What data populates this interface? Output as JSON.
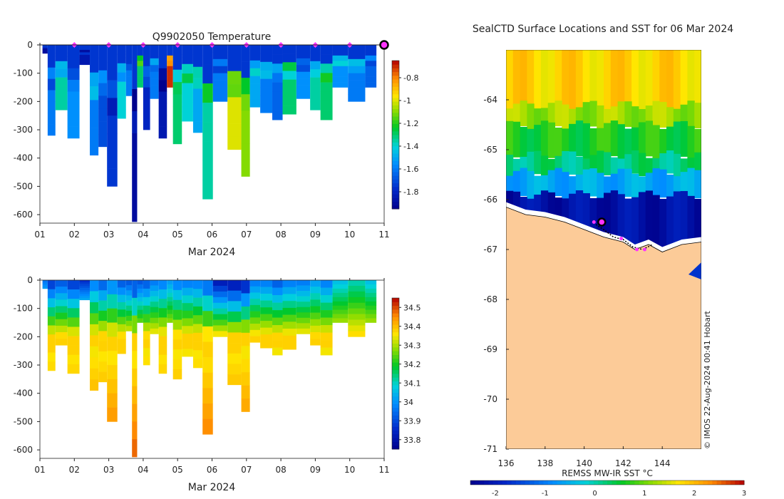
{
  "chart_data": [
    {
      "type": "heatmap",
      "panel": "temperature-section",
      "title": "Q9902050  Temperature",
      "xlabel": "Mar 2024",
      "ylabel": "",
      "x_ticks": [
        "01",
        "02",
        "03",
        "04",
        "05",
        "06",
        "07",
        "08",
        "09",
        "10",
        "11"
      ],
      "xlim": [
        1,
        11
      ],
      "ylim": [
        -630,
        0
      ],
      "y_ticks": [
        0,
        -100,
        -200,
        -300,
        -400,
        -500,
        -600
      ],
      "colorbar": {
        "ticks": [
          -0.8,
          -1,
          -1.2,
          -1.4,
          -1.6,
          -1.8
        ],
        "range": [
          -1.95,
          -0.65
        ]
      },
      "surface_markers_day": [
        2,
        3,
        4,
        5,
        6,
        7,
        8,
        9,
        10
      ],
      "current_position_day": 11,
      "profiles": [
        {
          "day": 1.15,
          "depth": 30,
          "temp": -1.9
        },
        {
          "day": 1.3,
          "depth": 320,
          "temp": -1.6
        },
        {
          "day": 1.6,
          "depth": 230,
          "temp": -1.35
        },
        {
          "day": 2.0,
          "depth": 330,
          "temp": -1.55
        },
        {
          "day": 2.3,
          "depth": 70,
          "temp": -1.85
        },
        {
          "day": 2.6,
          "depth": 390,
          "temp": -1.6
        },
        {
          "day": 2.8,
          "depth": 360,
          "temp": -1.7
        },
        {
          "day": 3.1,
          "depth": 500,
          "temp": -1.75
        },
        {
          "day": 3.4,
          "depth": 260,
          "temp": -1.4
        },
        {
          "day": 3.6,
          "depth": 180,
          "temp": -1.6
        },
        {
          "day": 3.75,
          "depth": 625,
          "temp": -1.9
        },
        {
          "day": 3.9,
          "depth": 150,
          "temp": -1.3
        },
        {
          "day": 4.1,
          "depth": 300,
          "temp": -1.8
        },
        {
          "day": 4.3,
          "depth": 190,
          "temp": -1.6
        },
        {
          "day": 4.6,
          "depth": 330,
          "temp": -1.85
        },
        {
          "day": 4.78,
          "depth": 150,
          "temp": -0.7
        },
        {
          "day": 4.95,
          "depth": 350,
          "temp": -1.3
        },
        {
          "day": 5.3,
          "depth": 270,
          "temp": -1.4
        },
        {
          "day": 5.6,
          "depth": 310,
          "temp": -1.5
        },
        {
          "day": 5.85,
          "depth": 545,
          "temp": -1.35
        },
        {
          "day": 6.2,
          "depth": 200,
          "temp": -1.6
        },
        {
          "day": 6.7,
          "depth": 370,
          "temp": -1.0
        },
        {
          "day": 7.0,
          "depth": 465,
          "temp": -1.1
        },
        {
          "day": 7.2,
          "depth": 220,
          "temp": -1.5
        },
        {
          "day": 7.6,
          "depth": 240,
          "temp": -1.6
        },
        {
          "day": 7.9,
          "depth": 265,
          "temp": -1.65
        },
        {
          "day": 8.2,
          "depth": 245,
          "temp": -1.3
        },
        {
          "day": 8.7,
          "depth": 190,
          "temp": -1.55
        },
        {
          "day": 9.0,
          "depth": 230,
          "temp": -1.35
        },
        {
          "day": 9.3,
          "depth": 265,
          "temp": -1.3
        },
        {
          "day": 9.7,
          "depth": 150,
          "temp": -1.55
        },
        {
          "day": 10.2,
          "depth": 200,
          "temp": -1.6
        },
        {
          "day": 10.7,
          "depth": 150,
          "temp": -1.65
        }
      ]
    },
    {
      "type": "heatmap",
      "panel": "salinity-section",
      "title": "",
      "xlabel": "Mar 2024",
      "ylabel": "",
      "x_ticks": [
        "01",
        "02",
        "03",
        "04",
        "05",
        "06",
        "07",
        "08",
        "09",
        "10",
        "11"
      ],
      "xlim": [
        1,
        11
      ],
      "ylim": [
        -630,
        0
      ],
      "y_ticks": [
        0,
        -100,
        -200,
        -300,
        -400,
        -500,
        -600
      ],
      "colorbar": {
        "ticks": [
          34.5,
          34.4,
          34.3,
          34.2,
          34.1,
          34,
          33.9,
          33.8
        ],
        "range": [
          33.75,
          34.55
        ]
      },
      "profiles": [
        {
          "day": 1.15,
          "depth": 30,
          "surf_sal": 33.95
        },
        {
          "day": 1.3,
          "depth": 320,
          "surf_sal": 33.85
        },
        {
          "day": 1.6,
          "depth": 230,
          "surf_sal": 33.9
        },
        {
          "day": 2.0,
          "depth": 330,
          "surf_sal": 33.85
        },
        {
          "day": 2.3,
          "depth": 70,
          "surf_sal": 33.85
        },
        {
          "day": 2.6,
          "depth": 390,
          "surf_sal": 33.95
        },
        {
          "day": 2.8,
          "depth": 360,
          "surf_sal": 33.9
        },
        {
          "day": 3.1,
          "depth": 500,
          "surf_sal": 33.95
        },
        {
          "day": 3.4,
          "depth": 260,
          "surf_sal": 33.9
        },
        {
          "day": 3.6,
          "depth": 180,
          "surf_sal": 33.9
        },
        {
          "day": 3.75,
          "depth": 625,
          "surf_sal": 33.85
        },
        {
          "day": 3.9,
          "depth": 150,
          "surf_sal": 33.9
        },
        {
          "day": 4.1,
          "depth": 300,
          "surf_sal": 33.9
        },
        {
          "day": 4.3,
          "depth": 190,
          "surf_sal": 33.95
        },
        {
          "day": 4.6,
          "depth": 330,
          "surf_sal": 33.95
        },
        {
          "day": 4.78,
          "depth": 150,
          "surf_sal": 34.0
        },
        {
          "day": 4.95,
          "depth": 350,
          "surf_sal": 33.95
        },
        {
          "day": 5.3,
          "depth": 270,
          "surf_sal": 33.95
        },
        {
          "day": 5.6,
          "depth": 310,
          "surf_sal": 33.95
        },
        {
          "day": 5.85,
          "depth": 545,
          "surf_sal": 33.9
        },
        {
          "day": 6.2,
          "depth": 200,
          "surf_sal": 33.8
        },
        {
          "day": 6.7,
          "depth": 370,
          "surf_sal": 33.78
        },
        {
          "day": 7.0,
          "depth": 465,
          "surf_sal": 33.8
        },
        {
          "day": 7.2,
          "depth": 220,
          "surf_sal": 33.95
        },
        {
          "day": 7.6,
          "depth": 240,
          "surf_sal": 33.95
        },
        {
          "day": 7.9,
          "depth": 265,
          "surf_sal": 33.9
        },
        {
          "day": 8.2,
          "depth": 245,
          "surf_sal": 33.95
        },
        {
          "day": 8.7,
          "depth": 190,
          "surf_sal": 33.95
        },
        {
          "day": 9.0,
          "depth": 230,
          "surf_sal": 34.0
        },
        {
          "day": 9.3,
          "depth": 265,
          "surf_sal": 33.95
        },
        {
          "day": 9.7,
          "depth": 150,
          "surf_sal": 34.05
        },
        {
          "day": 10.2,
          "depth": 200,
          "surf_sal": 34.1
        },
        {
          "day": 10.7,
          "depth": 150,
          "surf_sal": 34.05
        }
      ]
    },
    {
      "type": "heatmap",
      "panel": "sst-map",
      "title": "SealCTD Surface Locations and SST for 06 Mar 2024",
      "xlabel": "",
      "ylabel": "",
      "x_ticks": [
        136,
        138,
        140,
        142,
        144
      ],
      "y_ticks": [
        -64,
        -65,
        -66,
        -67,
        -68,
        -69,
        -70,
        -71
      ],
      "xlim": [
        136,
        146
      ],
      "ylim": [
        -71,
        -63
      ],
      "colorbar": {
        "label": "REMSS MW-IR SST °C",
        "ticks": [
          -2,
          -1,
          0,
          1,
          2,
          3
        ],
        "range": [
          -2.5,
          3
        ]
      },
      "sst_bands": [
        {
          "lat_from": -63.0,
          "lat_to": -64.1,
          "sst": 1.8
        },
        {
          "lat_from": -64.1,
          "lat_to": -64.5,
          "sst": 1.2
        },
        {
          "lat_from": -64.5,
          "lat_to": -65.1,
          "sst": 0.6
        },
        {
          "lat_from": -65.1,
          "lat_to": -65.45,
          "sst": 0.2
        },
        {
          "lat_from": -65.45,
          "lat_to": -65.9,
          "sst": -0.6
        },
        {
          "lat_from": -65.9,
          "lat_to": -67.0,
          "sst": -2.2
        }
      ],
      "coastline": [
        {
          "lon": 136.0,
          "lat": -66.15
        },
        {
          "lon": 137.0,
          "lat": -66.3
        },
        {
          "lon": 138.0,
          "lat": -66.35
        },
        {
          "lon": 139.0,
          "lat": -66.45
        },
        {
          "lon": 140.0,
          "lat": -66.6
        },
        {
          "lon": 141.0,
          "lat": -66.75
        },
        {
          "lon": 142.0,
          "lat": -66.85
        },
        {
          "lon": 142.6,
          "lat": -67.0
        },
        {
          "lon": 143.3,
          "lat": -66.9
        },
        {
          "lon": 144.0,
          "lat": -67.05
        },
        {
          "lon": 145.0,
          "lat": -66.9
        },
        {
          "lon": 146.0,
          "lat": -66.85
        }
      ],
      "track": [
        {
          "lon": 140.6,
          "lat": -66.5
        },
        {
          "lon": 141.0,
          "lat": -66.6
        },
        {
          "lon": 141.5,
          "lat": -66.75
        },
        {
          "lon": 142.0,
          "lat": -66.8
        },
        {
          "lon": 142.5,
          "lat": -66.95
        },
        {
          "lon": 143.0,
          "lat": -67.0
        },
        {
          "lon": 143.5,
          "lat": -66.9
        }
      ],
      "track_markers": [
        {
          "lon": 140.5,
          "lat": -66.45
        },
        {
          "lon": 141.9,
          "lat": -66.78
        },
        {
          "lon": 142.7,
          "lat": -67.0
        },
        {
          "lon": 143.1,
          "lat": -67.0
        }
      ],
      "current_position": {
        "lon": 140.9,
        "lat": -66.45
      },
      "credit": "© IMOS 22-Aug-2024 00:41 Hobart"
    }
  ]
}
